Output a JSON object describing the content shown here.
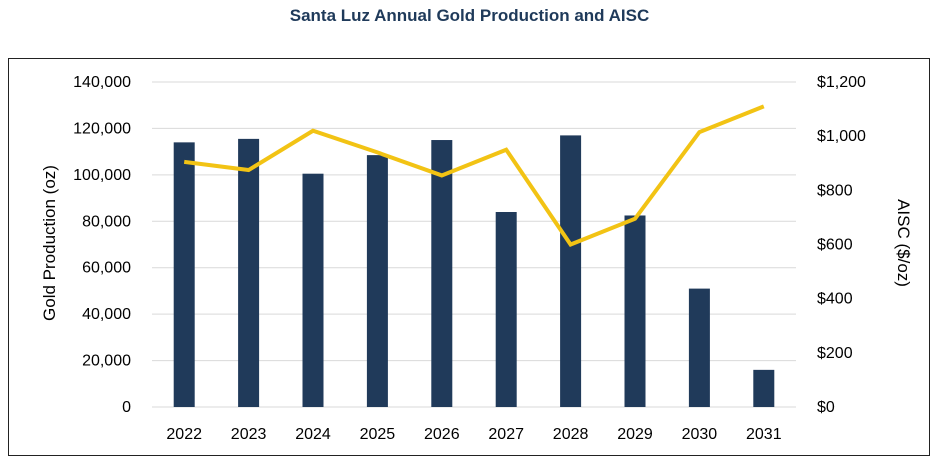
{
  "chart_data": {
    "type": "bar+line",
    "title": "Santa Luz Annual Gold Production and AISC",
    "categories": [
      "2022",
      "2023",
      "2024",
      "2025",
      "2026",
      "2027",
      "2028",
      "2029",
      "2030",
      "2031"
    ],
    "series": [
      {
        "name": "Gold Production",
        "type": "bar",
        "axis": "left",
        "color": "#203a5a",
        "values": [
          114000,
          115500,
          100500,
          108500,
          115000,
          84000,
          117000,
          82500,
          51000,
          16000
        ]
      },
      {
        "name": "AISC",
        "type": "line",
        "axis": "right",
        "color": "#f2c314",
        "values": [
          905,
          875,
          1020,
          940,
          855,
          950,
          600,
          695,
          1015,
          1110
        ]
      }
    ],
    "ylabel": "Gold Production (oz)",
    "ylabel_right": "AISC ($/oz)",
    "ylim": [
      0,
      140000
    ],
    "ylim_right": [
      0,
      1200
    ],
    "yticks": [
      "0",
      "20,000",
      "40,000",
      "60,000",
      "80,000",
      "100,000",
      "120,000",
      "140,000"
    ],
    "yticks_right": [
      "$0",
      "$200",
      "$400",
      "$600",
      "$800",
      "$1,000",
      "$1,200"
    ],
    "grid": true,
    "legend": "none"
  }
}
